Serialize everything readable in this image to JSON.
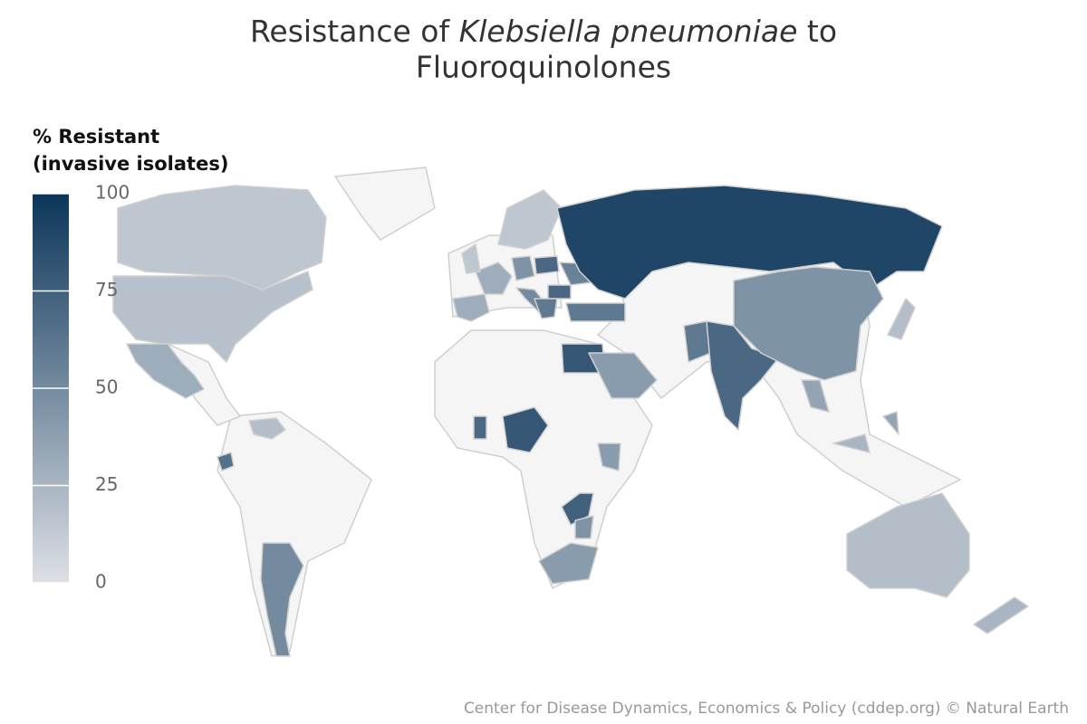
{
  "chart_data": {
    "type": "choropleth",
    "title": {
      "prefix": "Resistance of",
      "italic": "Klebsiella pneumoniae",
      "suffix": "to",
      "line2": "Fluoroquinolones"
    },
    "legend_title": [
      "% Resistant",
      "(invasive isolates)"
    ],
    "colorscale": [
      "#dde0e5",
      "#0b3559"
    ],
    "lim": [
      0,
      100
    ],
    "ticks": [
      0,
      25,
      50,
      75,
      100
    ],
    "values": [
      15,
      18,
      30,
      20,
      65,
      50,
      30,
      30,
      45,
      70,
      50,
      55,
      70,
      60,
      60,
      15,
      15,
      90,
      80,
      40,
      60,
      70,
      45,
      35,
      80,
      70,
      40,
      75,
      45,
      40,
      20,
      25,
      20,
      35,
      25
    ],
    "credit": "Center for Disease Dynamics, Economics & Policy (cddep.org) © Natural Earth"
  }
}
